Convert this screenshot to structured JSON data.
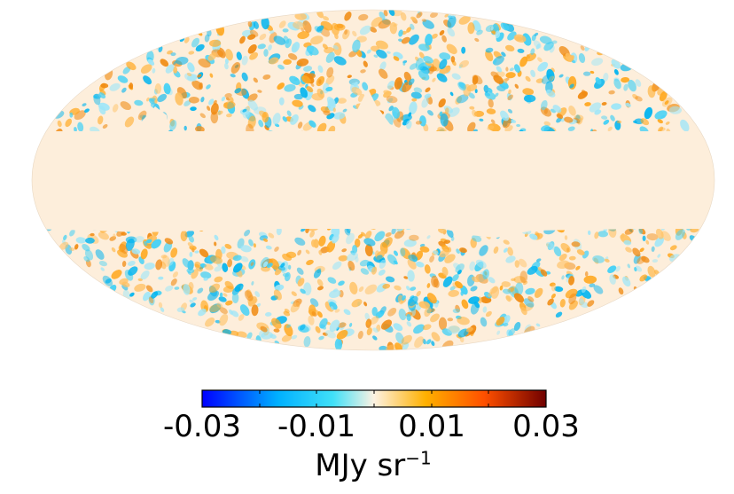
{
  "chart_data": {
    "type": "heatmap",
    "projection": "Mollweide",
    "description_colormap": "diverging blue-cyan-cream-orange-dark red",
    "colorbar": {
      "min": -0.03,
      "max": 0.03,
      "ticks": [
        "-0.03",
        "-0.01",
        "0.01",
        "0.03"
      ],
      "unit_base": "MJy sr",
      "unit_exp": "−1",
      "colors": [
        "#0000ff",
        "#00b0ff",
        "#40e0f8",
        "#fdf2e2",
        "#ffb000",
        "#ff5000",
        "#700000"
      ]
    },
    "masked_region": "galactic plane band",
    "masked_color": "#fdeedb"
  }
}
